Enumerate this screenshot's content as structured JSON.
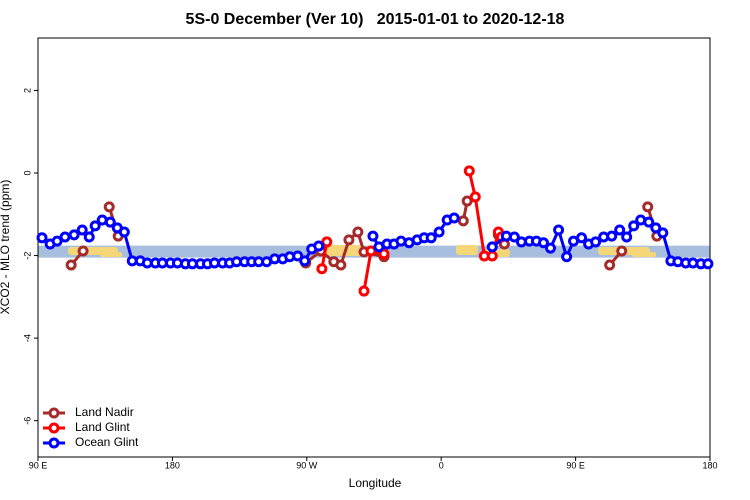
{
  "chart_data": {
    "type": "line",
    "title": "5S-0 December (Ver 10)   2015-01-01 to 2020-12-18",
    "x_label": "Longitude",
    "y_label": "XCO2 - MLO trend (ppm)",
    "xlim": [
      90,
      540
    ],
    "ylim": [
      -6.88,
      3.27
    ],
    "xticks": [
      {
        "value": 90,
        "label": "90 E"
      },
      180,
      {
        "value": 270,
        "label": "90 W"
      },
      {
        "value": 360,
        "label": "0"
      },
      {
        "value": 450,
        "label": "90 E"
      },
      {
        "value": 540,
        "label": "180"
      }
    ],
    "yticks": [
      -6,
      -4,
      -2,
      0,
      2
    ],
    "band": [
      -2.05,
      -1.76
    ],
    "band_color": "#a7bedf",
    "legend": "bottom-left",
    "series": [
      {
        "name": "Land Nadir",
        "color": "#a52a2a",
        "x": [
          112.2,
          120.2,
          null,
          137.7,
          143.7,
          null,
          269.3,
          279.4,
          288.1,
          292.8,
          298.2,
          304.2,
          308.3,
          321.7,
          null,
          374.8,
          377.4,
          null,
          398.3,
          402.3,
          null,
          472.8,
          480.9,
          null,
          498.3,
          504.4
        ],
        "values": [
          -2.23,
          -1.89,
          null,
          -0.82,
          -1.53,
          null,
          -2.18,
          -1.89,
          -2.15,
          -2.23,
          -1.62,
          -1.43,
          -1.91,
          -2.03,
          null,
          -1.16,
          -0.68,
          null,
          -1.5,
          -1.72,
          null,
          -2.23,
          -1.89,
          null,
          -0.82,
          -1.53
        ]
      },
      {
        "name": "Land Glint",
        "color": "#ff0000",
        "x": [
          280.1,
          283.4,
          null,
          308.3,
          313.0,
          321.7,
          null,
          378.8,
          382.8,
          388.9,
          394.2,
          398.3,
          400.3
        ],
        "values": [
          -2.32,
          -1.67,
          null,
          -2.86,
          -1.89,
          -1.96,
          null,
          0.05,
          -0.58,
          -2.01,
          -2.01,
          -1.43,
          -1.55
        ]
      },
      {
        "name": "Ocean Glint",
        "color": "#0000ff",
        "x": [
          92.7,
          98.1,
          102.8,
          108.1,
          114.2,
          119.6,
          124.3,
          128.3,
          133.0,
          138.4,
          143.1,
          147.8,
          153.1,
          158.5,
          163.2,
          168.6,
          173.3,
          178.7,
          183.4,
          188.7,
          193.4,
          198.8,
          203.5,
          208.2,
          213.6,
          218.3,
          223.0,
          228.3,
          233.1,
          237.8,
          243.1,
          248.5,
          253.9,
          258.6,
          263.9,
          268.6,
          273.3,
          278.0,
          null,
          314.3,
          318.3,
          323.7,
          328.4,
          333.1,
          338.5,
          343.9,
          348.6,
          353.3,
          358.6,
          364.0,
          368.7,
          null,
          394.2,
          403.6,
          409.0,
          413.7,
          419.1,
          423.8,
          428.5,
          433.2,
          438.6,
          444.0,
          448.6,
          454.0,
          458.7,
          463.4,
          468.8,
          474.2,
          479.5,
          484.2,
          488.9,
          493.6,
          499.0,
          503.7,
          508.4,
          513.8,
          518.5,
          523.8,
          528.6,
          533.9,
          538.6
        ],
        "values": [
          -1.57,
          -1.72,
          -1.65,
          -1.55,
          -1.5,
          -1.38,
          -1.55,
          -1.28,
          -1.14,
          -1.19,
          -1.33,
          -1.43,
          -2.13,
          -2.13,
          -2.18,
          -2.18,
          -2.18,
          -2.18,
          -2.18,
          -2.2,
          -2.2,
          -2.2,
          -2.2,
          -2.18,
          -2.18,
          -2.18,
          -2.15,
          -2.15,
          -2.15,
          -2.15,
          -2.15,
          -2.08,
          -2.08,
          -2.03,
          -2.01,
          -2.13,
          -1.84,
          -1.77,
          null,
          -1.53,
          -1.79,
          -1.72,
          -1.72,
          -1.65,
          -1.69,
          -1.62,
          -1.57,
          -1.57,
          -1.43,
          -1.14,
          -1.09,
          null,
          -1.79,
          -1.53,
          -1.55,
          -1.67,
          -1.65,
          -1.65,
          -1.69,
          -1.82,
          -1.38,
          -2.03,
          -1.65,
          -1.57,
          -1.72,
          -1.67,
          -1.55,
          -1.53,
          -1.38,
          -1.55,
          -1.28,
          -1.14,
          -1.19,
          -1.33,
          -1.45,
          -2.13,
          -2.15,
          -2.18,
          -2.18,
          -2.2,
          -2.2
        ]
      }
    ]
  }
}
